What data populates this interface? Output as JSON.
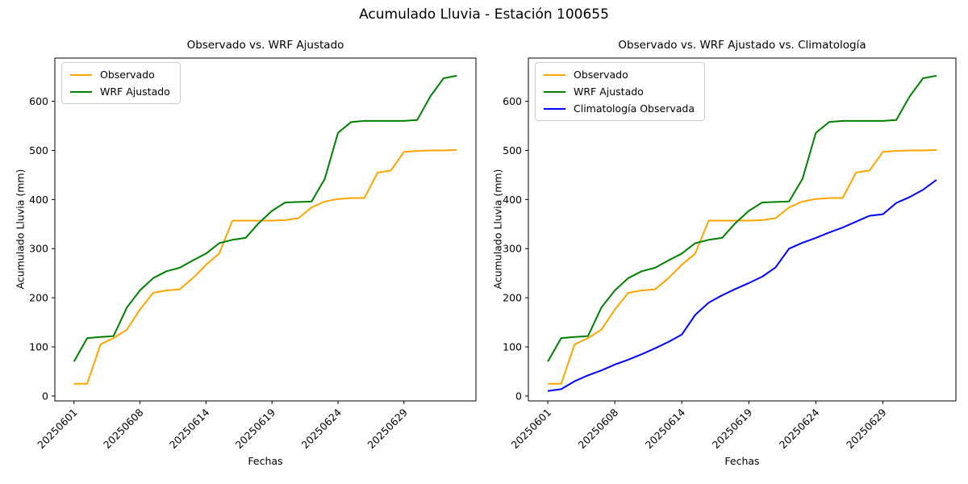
{
  "figure": {
    "title": "Acumulado Lluvia - Estación 100655",
    "background_color": "#ffffff",
    "text_color": "#000000"
  },
  "colors": {
    "observado": "#FFA500",
    "wrf_ajustado": "#008000",
    "climatologia": "#0000FF"
  },
  "chart_data": [
    {
      "type": "line",
      "title": "Observado vs. WRF Ajustado",
      "xlabel": "Fechas",
      "ylabel": "Acumulado Lluvia (mm)",
      "x": [
        "20250601",
        "20250602",
        "20250604",
        "20250606",
        "20250607",
        "20250608",
        "20250609",
        "20250610",
        "20250611",
        "20250612",
        "20250614",
        "20250615",
        "20250616",
        "20250617",
        "20250618",
        "20250619",
        "20250620",
        "20250621",
        "20250622",
        "20250623",
        "20250624",
        "20250625",
        "20250626",
        "20250627",
        "20250628",
        "20250629",
        "20250630",
        "20250701",
        "20250702",
        "20250703"
      ],
      "xtick_indices": [
        0,
        5,
        10,
        15,
        20,
        25
      ],
      "xtick_labels": [
        "20250601",
        "20250608",
        "20250614",
        "20250619",
        "20250624",
        "20250629"
      ],
      "xtick_rotation": 45,
      "ytick_values": [
        0,
        100,
        200,
        300,
        400,
        500,
        600
      ],
      "ylim": [
        -10,
        688
      ],
      "grid": false,
      "legend_position": "upper left",
      "series": [
        {
          "name": "Observado",
          "color": "#FFA500",
          "values": [
            25,
            25,
            105,
            118,
            135,
            176,
            210,
            215,
            217,
            240,
            267,
            290,
            357,
            357,
            357,
            357,
            358,
            362,
            384,
            396,
            401,
            403,
            403,
            455,
            459,
            497,
            499,
            500,
            500,
            501
          ]
        },
        {
          "name": "WRF Ajustado",
          "color": "#008000",
          "values": [
            70,
            118,
            120,
            122,
            180,
            215,
            240,
            254,
            261,
            276,
            290,
            311,
            318,
            322,
            352,
            377,
            394,
            395,
            396,
            442,
            536,
            558,
            560,
            560,
            560,
            560,
            562,
            610,
            647,
            652
          ]
        }
      ]
    },
    {
      "type": "line",
      "title": "Observado vs. WRF Ajustado vs. Climatología",
      "xlabel": "Fechas",
      "ylabel": "Acumulado Lluvia (mm)",
      "x": [
        "20250601",
        "20250602",
        "20250604",
        "20250606",
        "20250607",
        "20250608",
        "20250609",
        "20250610",
        "20250611",
        "20250612",
        "20250614",
        "20250615",
        "20250616",
        "20250617",
        "20250618",
        "20250619",
        "20250620",
        "20250621",
        "20250622",
        "20250623",
        "20250624",
        "20250625",
        "20250626",
        "20250627",
        "20250628",
        "20250629",
        "20250630",
        "20250701",
        "20250702",
        "20250703"
      ],
      "xtick_indices": [
        0,
        5,
        10,
        15,
        20,
        25
      ],
      "xtick_labels": [
        "20250601",
        "20250608",
        "20250614",
        "20250619",
        "20250624",
        "20250629"
      ],
      "xtick_rotation": 45,
      "ytick_values": [
        0,
        100,
        200,
        300,
        400,
        500,
        600
      ],
      "ylim": [
        -10,
        688
      ],
      "grid": false,
      "legend_position": "upper left",
      "series": [
        {
          "name": "Observado",
          "color": "#FFA500",
          "values": [
            25,
            25,
            105,
            118,
            135,
            176,
            210,
            215,
            217,
            240,
            267,
            290,
            357,
            357,
            357,
            357,
            358,
            362,
            384,
            396,
            401,
            403,
            403,
            455,
            459,
            497,
            499,
            500,
            500,
            501
          ]
        },
        {
          "name": "WRF Ajustado",
          "color": "#008000",
          "values": [
            70,
            118,
            120,
            122,
            180,
            215,
            240,
            254,
            261,
            276,
            290,
            311,
            318,
            322,
            352,
            377,
            394,
            395,
            396,
            442,
            536,
            558,
            560,
            560,
            560,
            560,
            562,
            610,
            647,
            652
          ]
        },
        {
          "name": "Climatología Observada",
          "color": "#0000FF",
          "values": [
            10,
            14,
            30,
            42,
            52,
            64,
            74,
            85,
            97,
            110,
            125,
            165,
            190,
            205,
            218,
            230,
            243,
            262,
            300,
            312,
            322,
            333,
            343,
            355,
            367,
            370,
            393,
            405,
            420,
            440
          ]
        }
      ]
    }
  ]
}
